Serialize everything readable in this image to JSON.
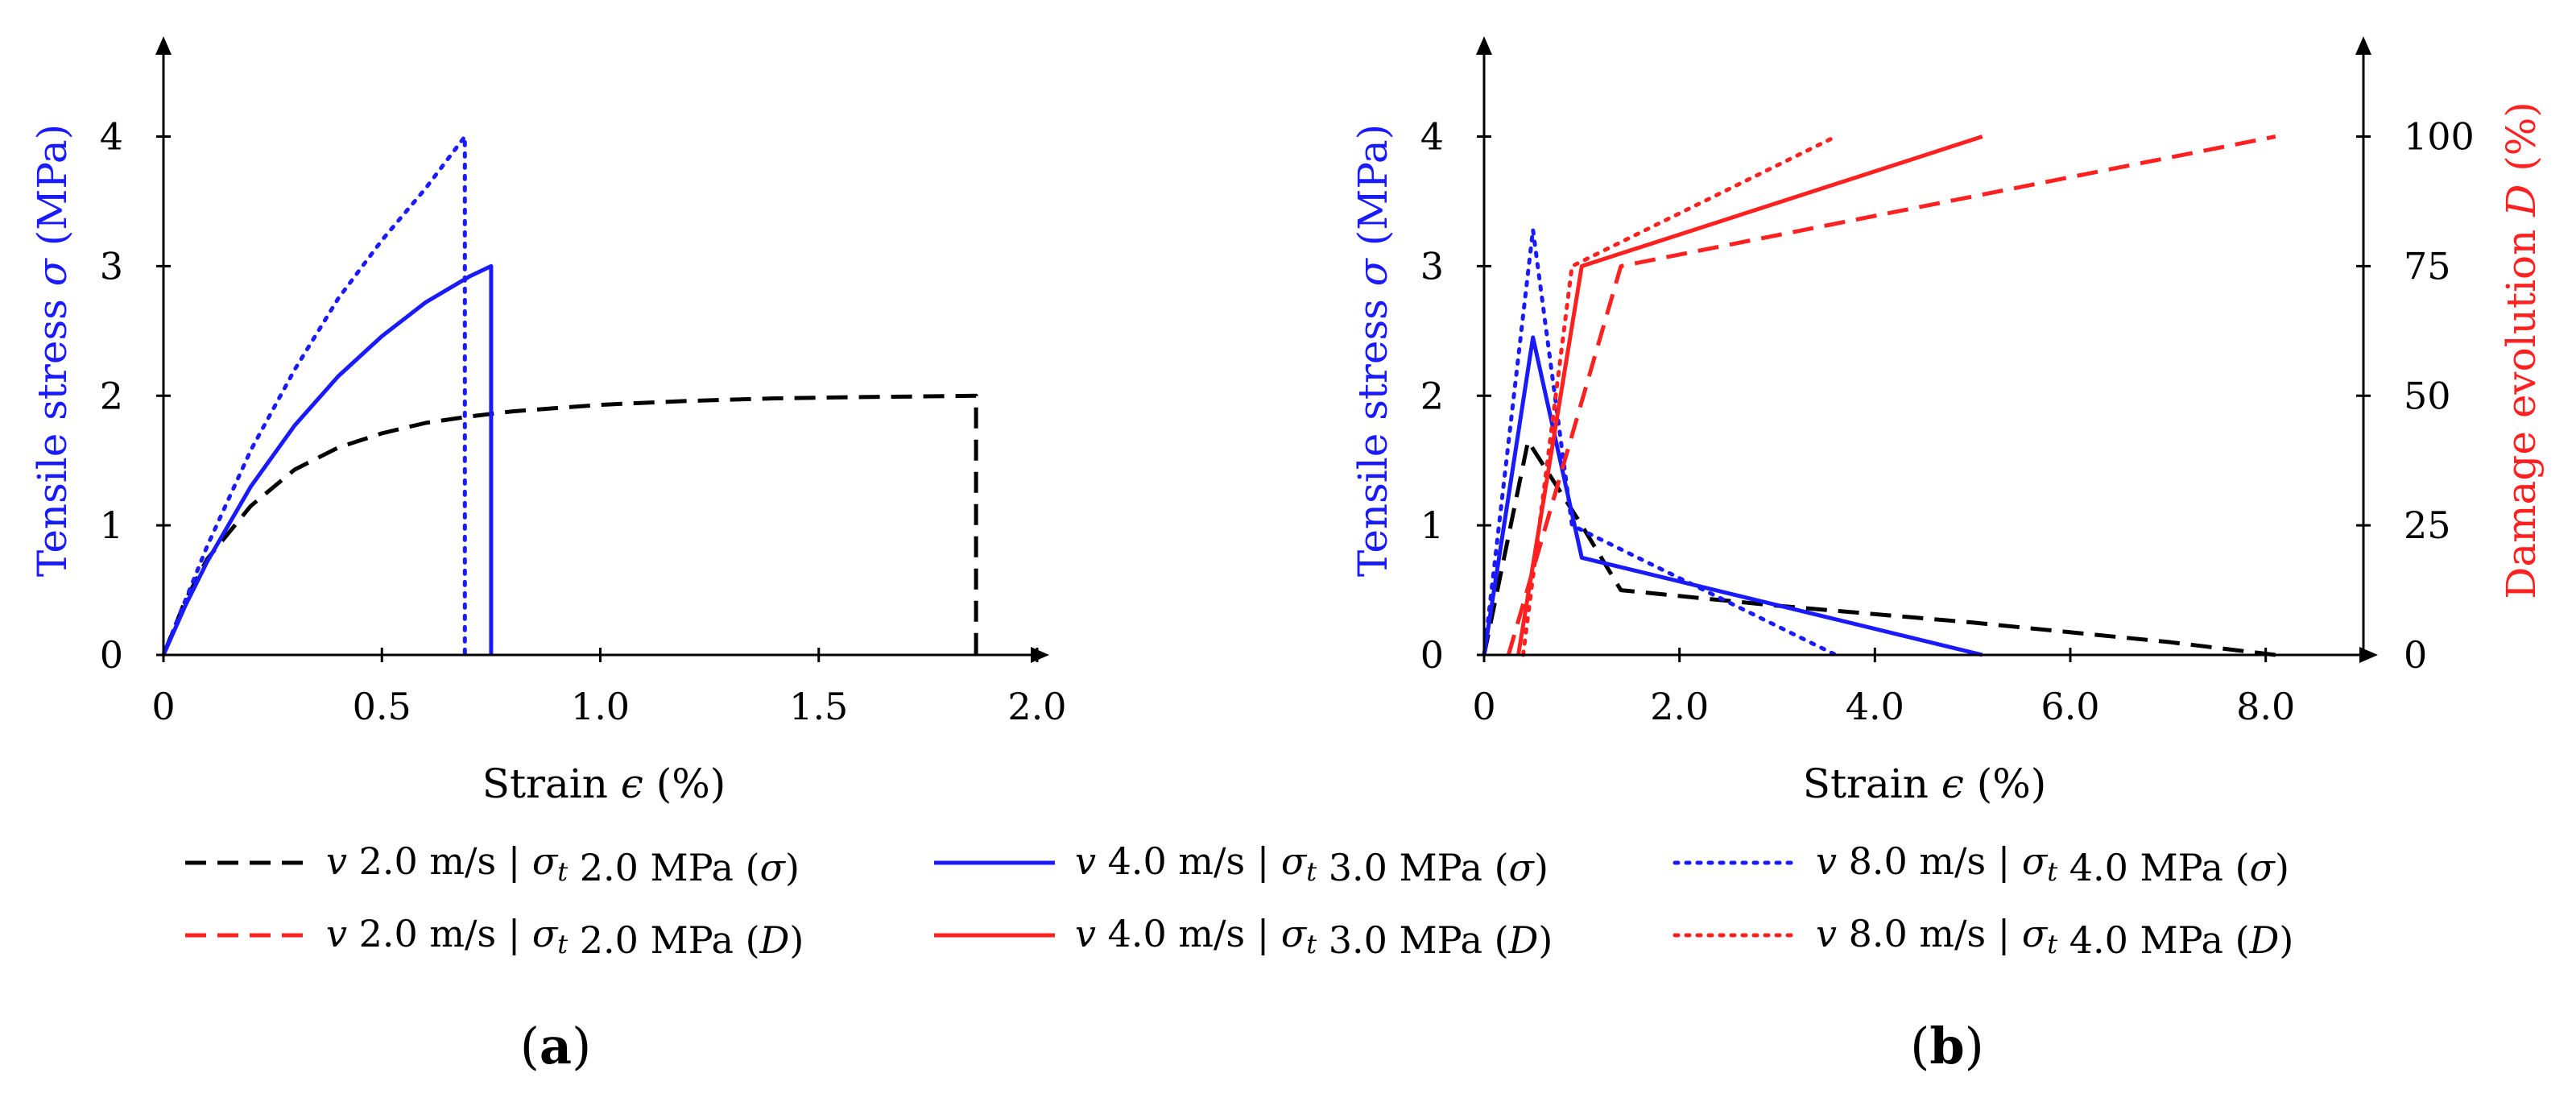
{
  "colors": {
    "blue": "#1a1aff",
    "red": "#ff2020",
    "black": "#000000"
  },
  "chart_data": [
    {
      "type": "line",
      "panel": "(a)",
      "xlabel": "Strain ϵ (%)",
      "ylabel": "Tensile stress σ (MPa)",
      "xlim": [
        0,
        2.0
      ],
      "ylim": [
        0,
        4.6
      ],
      "xticks": [
        "0",
        "0.5",
        "1.0",
        "1.5",
        "2.0"
      ],
      "yticks": [
        "0",
        "1",
        "2",
        "3",
        "4"
      ],
      "series": [
        {
          "name": "v 2.0 m/s | σt 2.0 MPa (σ)",
          "color": "black",
          "style": "dashed",
          "x": [
            0,
            0.05,
            0.1,
            0.2,
            0.3,
            0.4,
            0.5,
            0.6,
            0.7,
            0.8,
            1.0,
            1.2,
            1.4,
            1.6,
            1.86,
            1.86
          ],
          "y": [
            0,
            0.42,
            0.74,
            1.15,
            1.43,
            1.6,
            1.71,
            1.79,
            1.84,
            1.88,
            1.93,
            1.96,
            1.98,
            1.99,
            2.0,
            0
          ]
        },
        {
          "name": "v 4.0 m/s | σt 3.0 MPa (σ)",
          "color": "blue",
          "style": "solid",
          "x": [
            0,
            0.05,
            0.1,
            0.2,
            0.3,
            0.4,
            0.5,
            0.6,
            0.7,
            0.75,
            0.75
          ],
          "y": [
            0,
            0.38,
            0.72,
            1.3,
            1.77,
            2.15,
            2.46,
            2.72,
            2.92,
            3.0,
            0
          ]
        },
        {
          "name": "v 8.0 m/s | σt 4.0 MPa (σ)",
          "color": "blue",
          "style": "dotted",
          "x": [
            0,
            0.1,
            0.2,
            0.3,
            0.4,
            0.5,
            0.6,
            0.69,
            0.69
          ],
          "y": [
            0,
            0.84,
            1.58,
            2.2,
            2.75,
            3.2,
            3.6,
            4.0,
            0
          ]
        }
      ]
    },
    {
      "type": "line",
      "panel": "(b)",
      "xlabel": "Strain ϵ (%)",
      "ylabel": "Tensile stress σ (MPa)",
      "y2label": "Damage evolution D (%)",
      "xlim": [
        0,
        9.0
      ],
      "ylim": [
        0,
        4.6
      ],
      "y2lim": [
        0,
        115
      ],
      "xticks": [
        "0",
        "2.0",
        "4.0",
        "6.0",
        "8.0"
      ],
      "yticks": [
        "0",
        "1",
        "2",
        "3",
        "4"
      ],
      "y2ticks": [
        "0",
        "25",
        "50",
        "75",
        "100"
      ],
      "series": [
        {
          "name": "v 2.0 m/s | σt 2.0 MPa (σ)",
          "axis": "left",
          "color": "black",
          "style": "dashed",
          "x": [
            0,
            0.45,
            1.0,
            1.4,
            3.0,
            5.0,
            7.0,
            8.1
          ],
          "y": [
            0,
            1.65,
            1.0,
            0.5,
            0.38,
            0.25,
            0.1,
            0
          ]
        },
        {
          "name": "v 4.0 m/s | σt 3.0 MPa (σ)",
          "axis": "left",
          "color": "blue",
          "style": "solid",
          "x": [
            0,
            0.5,
            1.0,
            5.1
          ],
          "y": [
            0,
            2.45,
            0.75,
            0
          ]
        },
        {
          "name": "v 8.0 m/s | σt 4.0 MPa (σ)",
          "axis": "left",
          "color": "blue",
          "style": "dotted",
          "x": [
            0,
            0.5,
            0.9,
            3.6
          ],
          "y": [
            0,
            3.28,
            1.0,
            0
          ]
        },
        {
          "name": "v 2.0 m/s | σt 2.0 MPa (D)",
          "axis": "right",
          "color": "red",
          "style": "dashed",
          "x": [
            0.25,
            1.4,
            8.1
          ],
          "y": [
            0,
            75,
            100
          ]
        },
        {
          "name": "v 4.0 m/s | σt 3.0 MPa (D)",
          "axis": "right",
          "color": "red",
          "style": "solid",
          "x": [
            0.35,
            1.0,
            5.1
          ],
          "y": [
            0,
            75,
            100
          ]
        },
        {
          "name": "v 8.0 m/s | σt 4.0 MPa (D)",
          "axis": "right",
          "color": "red",
          "style": "dotted",
          "x": [
            0.4,
            0.9,
            3.6
          ],
          "y": [
            0,
            75,
            100
          ]
        }
      ]
    }
  ],
  "legend": [
    {
      "v": "v",
      "speed": " 2.0 m/s | ",
      "sigma": "σ",
      "sub": "t",
      "rest": " 2.0 MPa (",
      "q": "σ",
      "close": ")",
      "color": "black",
      "style": "dashed"
    },
    {
      "v": "v",
      "speed": " 4.0 m/s | ",
      "sigma": "σ",
      "sub": "t",
      "rest": " 3.0 MPa (",
      "q": "σ",
      "close": ")",
      "color": "blue",
      "style": "solid"
    },
    {
      "v": "v",
      "speed": " 8.0 m/s | ",
      "sigma": "σ",
      "sub": "t",
      "rest": " 4.0 MPa (",
      "q": "σ",
      "close": ")",
      "color": "blue",
      "style": "dotted"
    },
    {
      "v": "v",
      "speed": " 2.0 m/s | ",
      "sigma": "σ",
      "sub": "t",
      "rest": " 2.0 MPa (",
      "q": "D",
      "close": ")",
      "color": "red",
      "style": "dashed"
    },
    {
      "v": "v",
      "speed": " 4.0 m/s | ",
      "sigma": "σ",
      "sub": "t",
      "rest": " 3.0 MPa (",
      "q": "D",
      "close": ")",
      "color": "red",
      "style": "solid"
    },
    {
      "v": "v",
      "speed": " 8.0 m/s | ",
      "sigma": "σ",
      "sub": "t",
      "rest": " 4.0 MPa (",
      "q": "D",
      "close": ")",
      "color": "red",
      "style": "dotted"
    }
  ],
  "labels": {
    "a": {
      "xlabel_pre": "Strain ",
      "xlabel_sym": "ϵ",
      "xlabel_post": " (%)",
      "ylabel_pre": "Tensile stress ",
      "ylabel_sym": "σ",
      "ylabel_post": " (MPa)"
    },
    "b": {
      "xlabel_pre": "Strain ",
      "xlabel_sym": "ϵ",
      "xlabel_post": " (%)",
      "ylabel_pre": "Tensile stress ",
      "ylabel_sym": "σ",
      "ylabel_post": " (MPa)",
      "y2label_pre": "Damage evolution ",
      "y2label_sym": "D",
      "y2label_post": " (%)"
    }
  },
  "captions": {
    "a_open": "(",
    "a_letter": "a",
    "a_close": ")",
    "b_open": "(",
    "b_letter": "b",
    "b_close": ")"
  }
}
